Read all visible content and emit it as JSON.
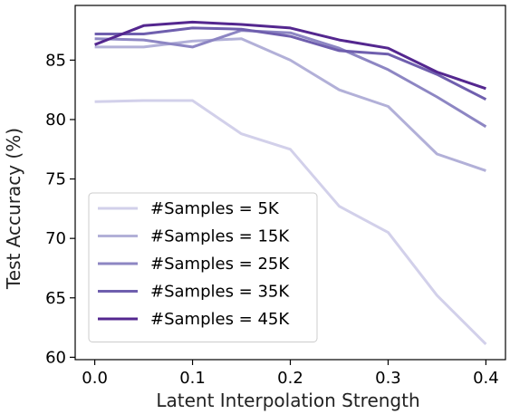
{
  "chart_data": {
    "type": "line",
    "title": "",
    "xlabel": "Latent Interpolation Strength",
    "ylabel": "Test Accuracy (%)",
    "xlim": [
      -0.02,
      0.42
    ],
    "ylim": [
      59.8,
      89.6
    ],
    "x_ticks": [
      0.0,
      0.1,
      0.2,
      0.3,
      0.4
    ],
    "x_tick_labels": [
      "0.0",
      "0.1",
      "0.2",
      "0.3",
      "0.4"
    ],
    "y_ticks": [
      60,
      65,
      70,
      75,
      80,
      85
    ],
    "y_tick_labels": [
      "60",
      "65",
      "70",
      "75",
      "80",
      "85"
    ],
    "grid": false,
    "legend_position": "lower-left",
    "x": [
      0.0,
      0.05,
      0.1,
      0.15,
      0.2,
      0.25,
      0.3,
      0.35,
      0.4
    ],
    "series": [
      {
        "name": "#Samples = 5K",
        "color": "#d2d0ea",
        "values": [
          81.5,
          81.6,
          81.6,
          78.8,
          77.5,
          72.7,
          70.5,
          65.2,
          61.1
        ]
      },
      {
        "name": "#Samples = 15K",
        "color": "#b2b0d8",
        "values": [
          86.1,
          86.1,
          86.6,
          86.8,
          85.0,
          82.5,
          81.1,
          77.1,
          75.7
        ]
      },
      {
        "name": "#Samples = 25K",
        "color": "#8d86c3",
        "values": [
          86.8,
          86.7,
          86.1,
          87.5,
          87.3,
          86.0,
          84.2,
          81.9,
          79.4
        ]
      },
      {
        "name": "#Samples = 35K",
        "color": "#6f5fae",
        "values": [
          87.2,
          87.2,
          87.7,
          87.6,
          87.0,
          85.8,
          85.5,
          83.8,
          81.7
        ]
      },
      {
        "name": "#Samples = 45K",
        "color": "#54278f",
        "values": [
          86.3,
          87.9,
          88.2,
          88.0,
          87.7,
          86.7,
          86.0,
          84.0,
          82.6
        ]
      }
    ]
  }
}
